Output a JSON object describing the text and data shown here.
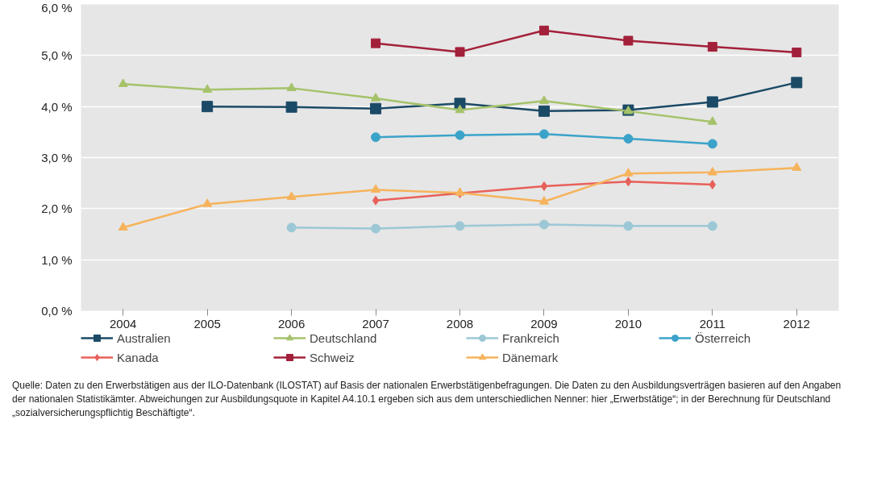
{
  "chart_data": {
    "type": "line",
    "x": [
      2004,
      2005,
      2006,
      2007,
      2008,
      2009,
      2010,
      2011,
      2012
    ],
    "xlim": [
      2003.5,
      2012.5
    ],
    "xticks": [
      2004,
      2005,
      2006,
      2007,
      2008,
      2009,
      2010,
      2011,
      2012
    ],
    "ylim": [
      0,
      6
    ],
    "yticks": [
      {
        "value": 0,
        "label": "0,0 %"
      },
      {
        "value": 1,
        "label": "1,0 %"
      },
      {
        "value": 2,
        "label": "2,0 %"
      },
      {
        "value": 3,
        "label": "3,0 %"
      },
      {
        "value": 4,
        "label": "4,0 %"
      },
      {
        "value": 5,
        "label": "5,0 %"
      },
      {
        "value": 6,
        "label": "6,0 %"
      }
    ],
    "grid": "y",
    "legend": "bottom",
    "series": [
      {
        "name": "Australien",
        "color": "#1b4a66",
        "marker": "square",
        "values": [
          null,
          4.0,
          3.99,
          3.96,
          4.06,
          3.91,
          3.93,
          4.09,
          4.47
        ]
      },
      {
        "name": "Kanada",
        "color": "#e8605a",
        "marker": "diamond",
        "values": [
          null,
          null,
          null,
          2.16,
          2.3,
          2.44,
          2.53,
          2.47,
          null
        ]
      },
      {
        "name": "Deutschland",
        "color": "#a5c26a",
        "marker": "triangle",
        "values": [
          4.44,
          4.33,
          4.36,
          4.16,
          3.93,
          4.11,
          3.91,
          3.7,
          null
        ]
      },
      {
        "name": "Schweiz",
        "color": "#a3203a",
        "marker": "square",
        "values": [
          null,
          null,
          null,
          5.24,
          5.07,
          5.49,
          5.29,
          5.17,
          5.06
        ]
      },
      {
        "name": "Frankreich",
        "color": "#9cc8d6",
        "marker": "circle",
        "values": [
          null,
          null,
          1.63,
          1.61,
          1.66,
          1.69,
          1.66,
          1.66,
          null
        ]
      },
      {
        "name": "Dänemark",
        "color": "#f6b35b",
        "marker": "triangle",
        "values": [
          1.63,
          2.09,
          2.23,
          2.37,
          2.31,
          2.14,
          2.69,
          2.71,
          2.8
        ]
      },
      {
        "name": "Österreich",
        "color": "#3ba3c9",
        "marker": "circle",
        "values": [
          null,
          null,
          null,
          3.4,
          3.44,
          3.46,
          3.37,
          3.27,
          null
        ]
      }
    ],
    "annotations": [
      "Quelle: Daten zu den Erwerbstätigen aus der ILO-Datenbank (ILOSTAT) auf Basis der nationalen Erwerbstätigenbefragungen. Die Daten zu den Ausbildungsverträgen basieren auf den Angaben der nationalen Statistikämter. Abweichungen zur Ausbildungsquote in Kapitel A4.10.1 ergeben sich aus dem unterschiedlichen Nenner: hier „Erwerbstätige“; in der Berechnung für Deutschland „sozialversicherungspflichtig Beschäftigte“."
    ]
  }
}
